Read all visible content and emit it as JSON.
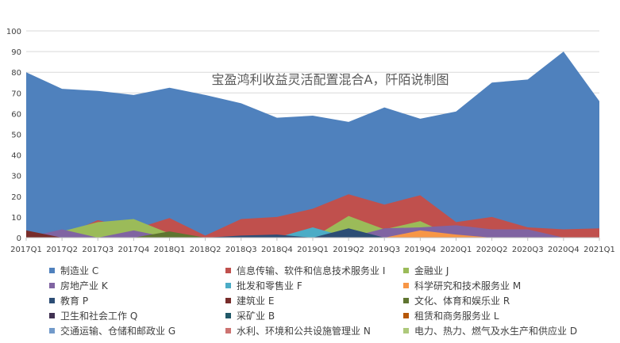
{
  "chart_data": {
    "type": "area",
    "title": "宝盈鸿利收益灵活配置混合A，阡陌说制图",
    "xlabel": "",
    "ylabel": "",
    "ylim": [
      0,
      100
    ],
    "yticks": [
      0,
      10,
      20,
      30,
      40,
      50,
      60,
      70,
      80,
      90,
      100
    ],
    "categories": [
      "2017Q1",
      "2017Q2",
      "2017Q3",
      "2017Q4",
      "2018Q1",
      "2018Q2",
      "2018Q3",
      "2018Q4",
      "2019Q1",
      "2019Q2",
      "2019Q3",
      "2019Q4",
      "2020Q1",
      "2020Q2",
      "2020Q3",
      "2020Q4",
      "2021Q1"
    ],
    "grid": true,
    "legend_position": "bottom",
    "series": [
      {
        "name": "制造业 C",
        "color": "#4f81bd",
        "values": [
          80,
          72,
          71,
          69,
          72.5,
          69,
          65,
          58,
          59,
          56,
          63,
          57.5,
          61,
          75,
          76.5,
          90,
          66
        ]
      },
      {
        "name": "信息传输、软件和信息技术服务业 I",
        "color": "#c0504d",
        "values": [
          2,
          1,
          8.5,
          4,
          9.5,
          1,
          9,
          10,
          14,
          21,
          16,
          20.5,
          7.5,
          10,
          5,
          4,
          4.5
        ]
      },
      {
        "name": "金融业 J",
        "color": "#9bbb59",
        "values": [
          0,
          3,
          7.5,
          9,
          2,
          0,
          0,
          0,
          0,
          10.5,
          4,
          8,
          0,
          0,
          0,
          0,
          0
        ]
      },
      {
        "name": "房地产业 K",
        "color": "#8064a2",
        "values": [
          0,
          4,
          0,
          3.5,
          0,
          0,
          0,
          0,
          0,
          0,
          4.5,
          5,
          6,
          4,
          4,
          0,
          0
        ]
      },
      {
        "name": "批发和零售业 F",
        "color": "#4bacc6",
        "values": [
          0,
          0,
          0,
          0,
          0,
          0,
          0,
          0,
          5,
          0,
          0,
          0,
          0,
          0,
          0,
          0,
          0
        ]
      },
      {
        "name": "科学研究和技术服务业 M",
        "color": "#f79646",
        "values": [
          0,
          0,
          0,
          0,
          0,
          0,
          0,
          0,
          0,
          0,
          0,
          3.5,
          1.5,
          0,
          0,
          0,
          0
        ]
      },
      {
        "name": "教育 P",
        "color": "#2c4d75",
        "values": [
          0,
          0,
          0,
          0,
          0,
          0,
          1,
          1.5,
          0,
          4.5,
          0,
          0,
          0,
          0,
          0,
          0,
          0
        ]
      },
      {
        "name": "建筑业 E",
        "color": "#772c2a",
        "values": [
          3.5,
          0,
          0,
          0,
          0,
          0,
          0,
          0,
          0,
          0,
          0,
          0,
          0,
          0,
          0,
          0,
          0
        ]
      },
      {
        "name": "文化、体育和娱乐业 R",
        "color": "#5f7530",
        "values": [
          0,
          0,
          0,
          0,
          3,
          0,
          0,
          0,
          0,
          0,
          0,
          0,
          0,
          0,
          0,
          0,
          0
        ]
      },
      {
        "name": "卫生和社会工作 Q",
        "color": "#403152",
        "values": [
          0,
          0,
          0,
          0,
          0,
          0,
          0,
          0,
          0,
          0,
          0,
          0,
          0,
          0,
          0,
          0,
          0
        ]
      },
      {
        "name": "采矿业 B",
        "color": "#215968",
        "values": [
          0,
          0,
          0,
          0,
          0,
          0,
          0,
          0,
          0,
          0,
          0,
          0,
          0,
          0,
          0,
          0,
          0
        ]
      },
      {
        "name": "租赁和商务服务业 L",
        "color": "#b65708",
        "values": [
          0,
          0,
          0,
          0,
          0,
          0,
          0,
          0,
          0,
          0,
          0,
          0,
          0,
          0,
          0,
          0,
          0
        ]
      },
      {
        "name": "交通运输、仓储和邮政业 G",
        "color": "#729aca",
        "values": [
          0,
          0,
          0,
          0,
          0,
          0,
          0,
          0,
          0,
          0,
          0,
          0,
          0,
          0,
          0,
          0,
          0
        ]
      },
      {
        "name": "水利、环境和公共设施管理业 N",
        "color": "#cd7371",
        "values": [
          0,
          0,
          0,
          0,
          0,
          0,
          0,
          0,
          0,
          0,
          0,
          0,
          0,
          0,
          0,
          0,
          0
        ]
      },
      {
        "name": "电力、热力、燃气及水生产和供应业 D",
        "color": "#aec97b",
        "values": [
          0,
          0,
          0,
          0,
          0,
          0,
          0,
          0,
          0,
          0,
          0,
          0,
          0,
          0,
          0,
          0,
          0
        ]
      }
    ]
  }
}
